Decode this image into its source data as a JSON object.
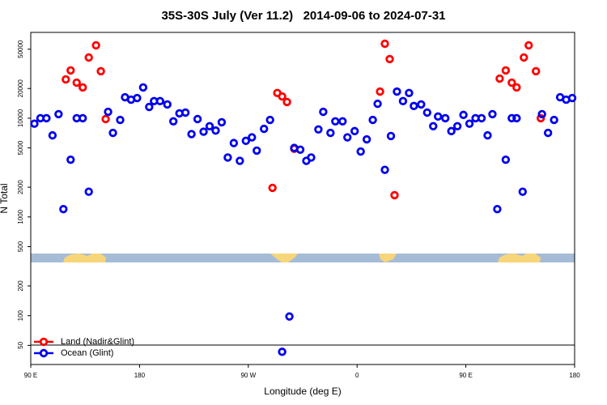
{
  "chart_data": {
    "type": "scatter",
    "title": "35S-30S July (Ver 11.2)   2014-09-06 to 2024-07-31",
    "x_label": "Longitude (deg E)",
    "y_label": "N Total",
    "xlim": [
      90,
      540
    ],
    "xticks": [
      {
        "value": 90,
        "label": "90 E"
      },
      180,
      {
        "value": 270,
        "label": "90 W"
      },
      {
        "value": 360,
        "label": "0"
      },
      {
        "value": 450,
        "label": "90 E"
      },
      {
        "value": 540,
        "label": "180"
      }
    ],
    "ylim": [
      32,
      74000
    ],
    "yticks": [
      50,
      100,
      200,
      500,
      1000,
      2000,
      5000,
      10000,
      20000,
      50000
    ],
    "ylog": true,
    "legend": "bottomleft",
    "series": [
      {
        "name": "Land (Nadir&Glint)",
        "color": "#ff0000",
        "x": [
          119,
          123,
          128,
          133,
          138,
          144,
          148,
          152,
          290,
          294,
          298,
          302,
          308,
          379,
          383,
          387,
          391,
          478,
          483,
          488,
          492,
          498,
          502,
          508,
          512
        ],
        "values": [
          24700,
          30500,
          22900,
          20500,
          41200,
          54700,
          29900,
          9800,
          1970,
          18000,
          16600,
          14600,
          4900,
          18600,
          56800,
          39700,
          1660,
          25200,
          30500,
          22900,
          20500,
          41200,
          54700,
          29900,
          10000
        ]
      },
      {
        "name": "Ocean (Glint)",
        "color": "#0000ee",
        "x": [
          93,
          98,
          103,
          108,
          113,
          117,
          123,
          128,
          133,
          138,
          154,
          158,
          164,
          168,
          173,
          178,
          183,
          188,
          192,
          197,
          203,
          208,
          213,
          218,
          223,
          228,
          233,
          238,
          243,
          248,
          253,
          258,
          263,
          268,
          273,
          277,
          283,
          288,
          308,
          313,
          318,
          322,
          328,
          332,
          338,
          342,
          348,
          352,
          358,
          363,
          368,
          373,
          377,
          383,
          388,
          393,
          398,
          403,
          407,
          413,
          418,
          423,
          427,
          433,
          438,
          443,
          448,
          453,
          458,
          463,
          468,
          472,
          476,
          483,
          488,
          492,
          497,
          513,
          518,
          523,
          528,
          533,
          538,
          304,
          298
        ],
        "values": [
          8800,
          10000,
          10000,
          6700,
          11000,
          1200,
          3800,
          10000,
          10000,
          1800,
          11600,
          7100,
          9600,
          16300,
          15400,
          16000,
          20500,
          13000,
          14900,
          14900,
          13800,
          9300,
          11200,
          11400,
          6900,
          9800,
          7300,
          8300,
          7500,
          9100,
          4000,
          5600,
          3700,
          5900,
          6400,
          4700,
          7800,
          9600,
          5000,
          4800,
          3700,
          4000,
          7700,
          11600,
          7100,
          9300,
          9300,
          6400,
          7400,
          4600,
          6100,
          9600,
          14000,
          3000,
          6600,
          18600,
          14900,
          18000,
          13300,
          13800,
          11400,
          8300,
          10400,
          10000,
          7400,
          8300,
          10800,
          8800,
          10000,
          10000,
          6700,
          11000,
          1200,
          3800,
          10000,
          10000,
          1800,
          11000,
          7100,
          9600,
          16300,
          15400,
          16000,
          98,
          43
        ]
      }
    ]
  }
}
